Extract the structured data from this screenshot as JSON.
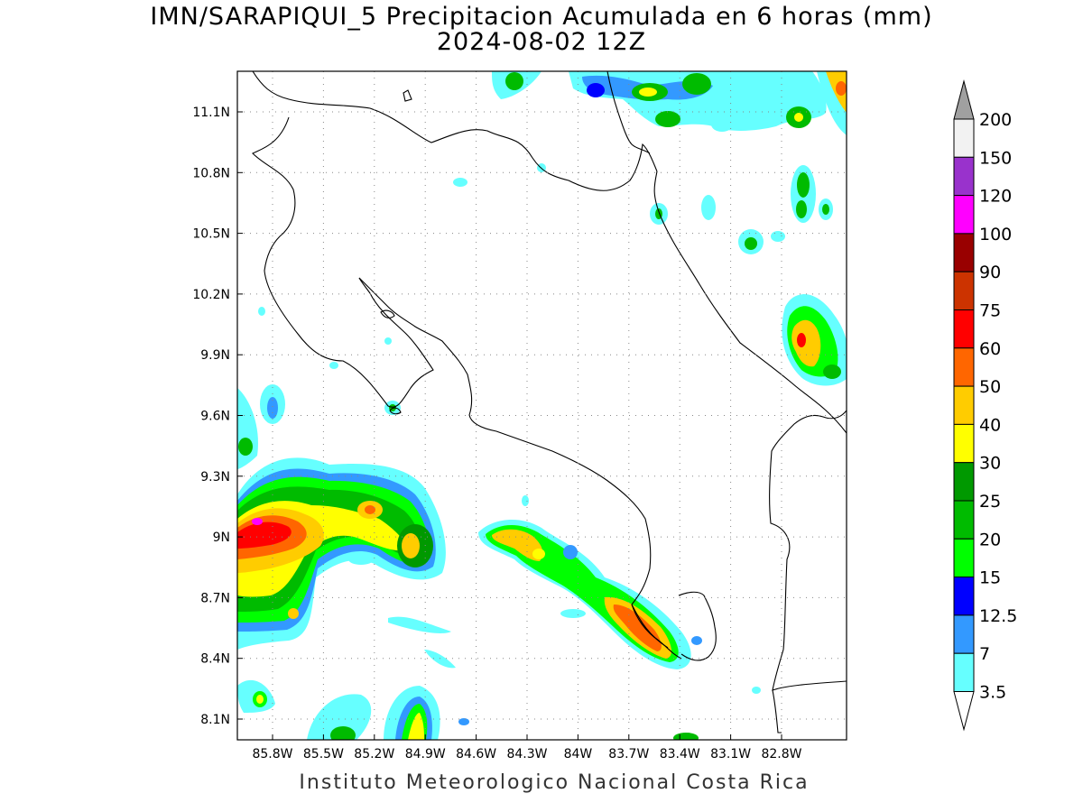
{
  "title": {
    "line1": "IMN/SARAPIQUI_5 Precipitacion Acumulada en 6 horas (mm)",
    "line2": "2024-08-02 12Z"
  },
  "footer": "Instituto Meteorologico Nacional Costa Rica",
  "map": {
    "lon_ticks": [
      "85.8W",
      "85.5W",
      "85.2W",
      "84.9W",
      "84.6W",
      "84.3W",
      "84W",
      "83.7W",
      "83.4W",
      "83.1W",
      "82.8W"
    ],
    "lat_ticks": [
      "11.1N",
      "10.8N",
      "10.5N",
      "10.2N",
      "9.9N",
      "9.6N",
      "9.3N",
      "9N",
      "8.7N",
      "8.4N",
      "8.1N"
    ],
    "grid": "dotted"
  },
  "colorbar": {
    "labels": [
      "200",
      "150",
      "120",
      "100",
      "90",
      "75",
      "60",
      "50",
      "40",
      "30",
      "25",
      "20",
      "15",
      "12.5",
      "7",
      "3.5"
    ],
    "colors": [
      "#f2f2f2",
      "#9932cc",
      "#ff00ff",
      "#990000",
      "#cc3300",
      "#ff0000",
      "#ff6600",
      "#ffcc00",
      "#ffff00",
      "#009900",
      "#00bb00",
      "#00ff00",
      "#0000ff",
      "#3399ff",
      "#66ffff"
    ],
    "over_color": "#a0a0a0",
    "under_color": "#ffffff"
  }
}
